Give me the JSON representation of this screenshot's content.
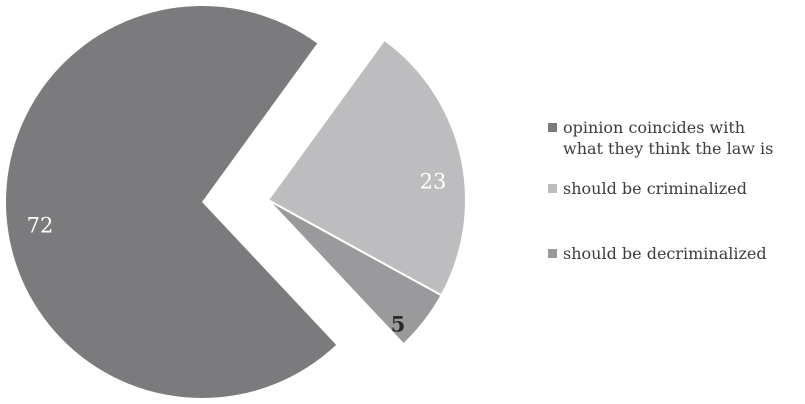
{
  "chart_data": {
    "type": "pie",
    "title": "",
    "slices": [
      {
        "label": "opinion coincides with\nwhat they think the law is",
        "value": 72,
        "display": "72",
        "color": "#7b7b7d",
        "label_color": "#ffffff"
      },
      {
        "label": "should be criminalized",
        "value": 23,
        "display": "23",
        "color": "#bdbdbf",
        "label_color": "#ffffff"
      },
      {
        "label": "should be decriminalized",
        "value": 5,
        "display": "5",
        "color": "#9a9a9c",
        "label_color": "#2a2a2a"
      }
    ],
    "legend_placement": "right"
  }
}
